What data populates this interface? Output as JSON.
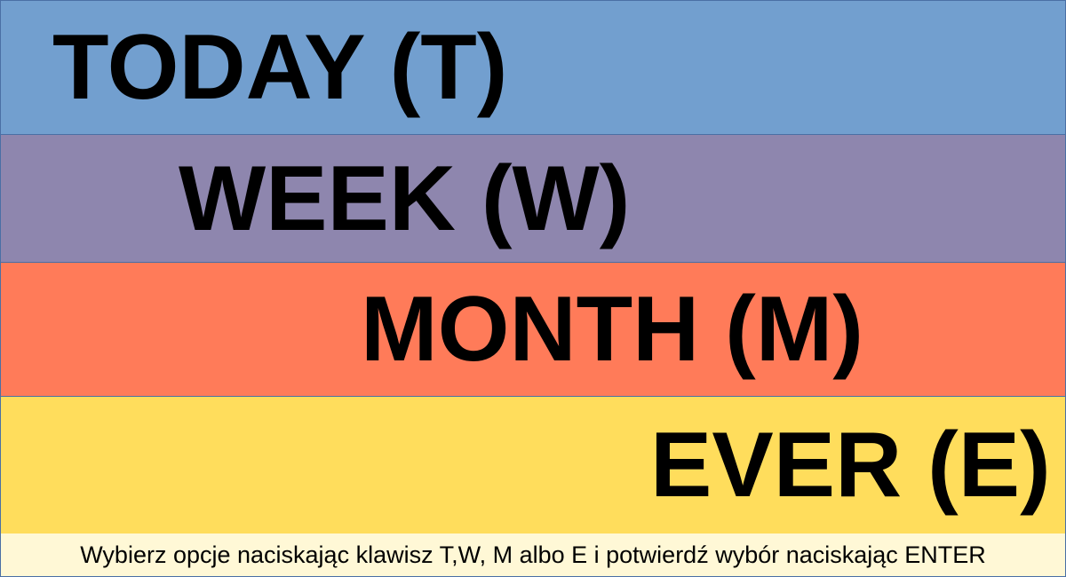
{
  "options": [
    {
      "label": "TODAY (T)",
      "color": "#729fcf"
    },
    {
      "label": "WEEK (W)",
      "color": "#8e86ae"
    },
    {
      "label": "MONTH (M)",
      "color": "#ff7b59"
    },
    {
      "label": "EVER (E)",
      "color": "#ffdd5c"
    }
  ],
  "footer": {
    "instruction": "Wybierz opcje naciskając klawisz T,W, M albo E i potwierdź wybór naciskając ENTER",
    "color": "#fff8d6"
  }
}
